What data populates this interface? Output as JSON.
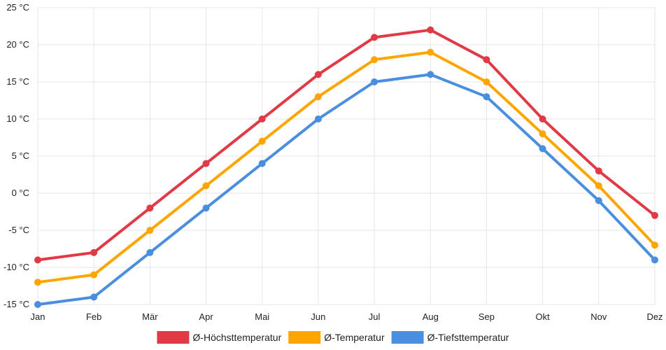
{
  "chart_data": {
    "type": "line",
    "title": "",
    "xlabel": "",
    "ylabel": "",
    "y_unit": "°C",
    "ylim": [
      -15,
      25
    ],
    "ytick_step": 5,
    "grid": true,
    "legend_position": "bottom",
    "categories": [
      "Jan",
      "Feb",
      "Mär",
      "Apr",
      "Mai",
      "Jun",
      "Jul",
      "Aug",
      "Sep",
      "Okt",
      "Nov",
      "Dez"
    ],
    "series": [
      {
        "name": "Ø-Höchsttemperatur",
        "color": "#e13a47",
        "values": [
          -9,
          -8,
          -2,
          4,
          10,
          16,
          21,
          22,
          18,
          10,
          3,
          -3
        ]
      },
      {
        "name": "Ø-Temperatur",
        "color": "#ffa500",
        "values": [
          -12,
          -11,
          -5,
          1,
          7,
          13,
          18,
          19,
          15,
          8,
          1,
          -7
        ]
      },
      {
        "name": "Ø-Tiefsttemperatur",
        "color": "#4a8fdf",
        "values": [
          -15,
          -14,
          -8,
          -2,
          4,
          10,
          15,
          16,
          13,
          6,
          -1,
          -9
        ]
      }
    ]
  }
}
